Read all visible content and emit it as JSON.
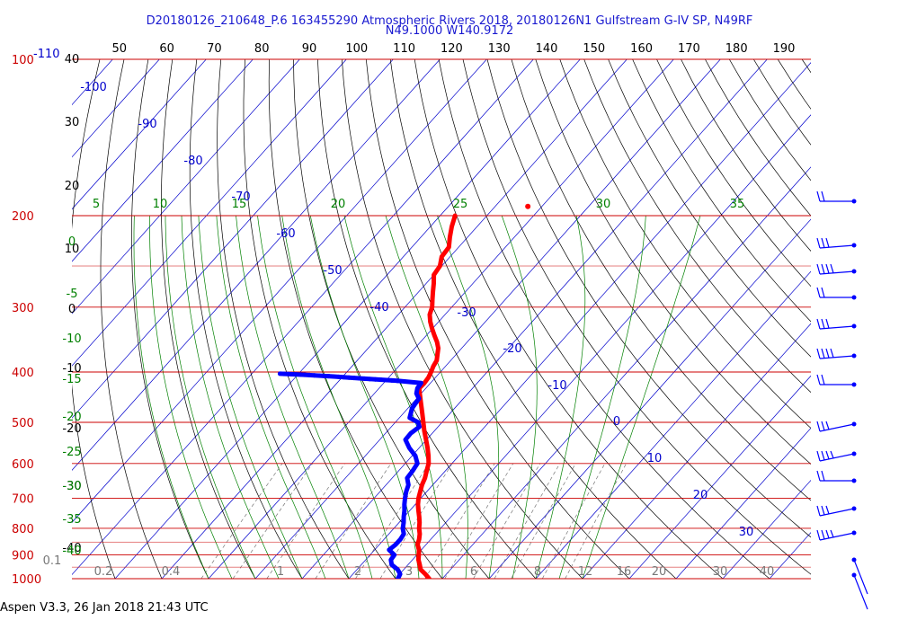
{
  "header": {
    "title": "D20180126_210648_P.6 163455290 Atmospheric Rivers 2018, 20180126N1 Gulfstream G-IV SP, N49RF",
    "subtitle": "N49.1000 W140.9172"
  },
  "footer": {
    "text": "Aspen V3.3, 26 Jan 2018  21:43 UTC"
  },
  "chart_data": {
    "type": "skew-t",
    "colors": {
      "temperature": "#ff0000",
      "dewpoint": "#0000ff",
      "isobars": "#cc0000",
      "isotherms": "#0000cc",
      "dry_adiabats": "#000000",
      "moist_adiabats": "#008000",
      "mixing_ratio": "#777777",
      "top_scale": "#000000"
    },
    "pressure_labels": [
      "100",
      "200",
      "300",
      "400",
      "500",
      "600",
      "700",
      "800",
      "900",
      "1000"
    ],
    "top_label_blue": "-110",
    "top_scale_labels": [
      "40",
      "50",
      "60",
      "70",
      "80",
      "90",
      "100",
      "110",
      "120",
      "130",
      "140",
      "150",
      "160",
      "170",
      "180",
      "190"
    ],
    "left_black_labels": [
      "30",
      "20",
      "10",
      "0",
      "-10",
      "-20",
      "-30",
      "-40"
    ],
    "isotherm_labels": [
      "-100",
      "-90",
      "-80",
      "-70",
      "-60",
      "-50",
      "-40",
      "-30",
      "-20",
      "-10",
      "0",
      "10",
      "20",
      "30"
    ],
    "moist_top_labels": [
      "5",
      "10",
      "15",
      "20",
      "25",
      "30",
      "35"
    ],
    "moist_left_labels": [
      "0",
      "-5",
      "-10",
      "-15",
      "-20",
      "-25",
      "-30",
      "-35",
      "-40"
    ],
    "mixing_ratio_labels": [
      "0.1",
      "0.2",
      "0.4",
      "1",
      "2",
      "3",
      "6",
      "8",
      "12",
      "16",
      "20",
      "30",
      "40"
    ],
    "temperature": [
      {
        "p": 1000,
        "t": 7.2
      },
      {
        "p": 980,
        "t": 5.5
      },
      {
        "p": 960,
        "t": 3.6
      },
      {
        "p": 940,
        "t": 2.5
      },
      {
        "p": 920,
        "t": 1.3
      },
      {
        "p": 900,
        "t": 0.4
      },
      {
        "p": 880,
        "t": -0.5
      },
      {
        "p": 860,
        "t": -1.8
      },
      {
        "p": 840,
        "t": -2.5
      },
      {
        "p": 820,
        "t": -3.4
      },
      {
        "p": 800,
        "t": -4.6
      },
      {
        "p": 780,
        "t": -5.6
      },
      {
        "p": 760,
        "t": -6.8
      },
      {
        "p": 740,
        "t": -8.1
      },
      {
        "p": 720,
        "t": -9.4
      },
      {
        "p": 700,
        "t": -10.5
      },
      {
        "p": 680,
        "t": -11.4
      },
      {
        "p": 660,
        "t": -12.3
      },
      {
        "p": 640,
        "t": -13.0
      },
      {
        "p": 620,
        "t": -14.0
      },
      {
        "p": 600,
        "t": -15.0
      },
      {
        "p": 580,
        "t": -16.5
      },
      {
        "p": 560,
        "t": -18.2
      },
      {
        "p": 540,
        "t": -20.1
      },
      {
        "p": 520,
        "t": -22.1
      },
      {
        "p": 500,
        "t": -24.0
      },
      {
        "p": 480,
        "t": -26.0
      },
      {
        "p": 460,
        "t": -28.1
      },
      {
        "p": 440,
        "t": -30.3
      },
      {
        "p": 430,
        "t": -31.4
      },
      {
        "p": 420,
        "t": -31.3
      },
      {
        "p": 410,
        "t": -31.5
      },
      {
        "p": 400,
        "t": -32.0
      },
      {
        "p": 390,
        "t": -32.6
      },
      {
        "p": 380,
        "t": -33.0
      },
      {
        "p": 370,
        "t": -34.0
      },
      {
        "p": 360,
        "t": -35.0
      },
      {
        "p": 350,
        "t": -36.5
      },
      {
        "p": 340,
        "t": -38.3
      },
      {
        "p": 330,
        "t": -40.1
      },
      {
        "p": 320,
        "t": -41.8
      },
      {
        "p": 310,
        "t": -43.3
      },
      {
        "p": 300,
        "t": -44.2
      },
      {
        "p": 290,
        "t": -45.6
      },
      {
        "p": 280,
        "t": -47.0
      },
      {
        "p": 270,
        "t": -48.4
      },
      {
        "p": 260,
        "t": -50.0
      },
      {
        "p": 250,
        "t": -50.4
      },
      {
        "p": 240,
        "t": -51.8
      },
      {
        "p": 230,
        "t": -52.1
      },
      {
        "p": 220,
        "t": -53.8
      },
      {
        "p": 210,
        "t": -55.4
      },
      {
        "p": 200,
        "t": -56.8
      }
    ],
    "dewpoint": [
      {
        "p": 1000,
        "t": 0.5
      },
      {
        "p": 980,
        "t": 0.1
      },
      {
        "p": 960,
        "t": -1.3
      },
      {
        "p": 940,
        "t": -3.5
      },
      {
        "p": 920,
        "t": -4.6
      },
      {
        "p": 900,
        "t": -4.8
      },
      {
        "p": 880,
        "t": -6.9
      },
      {
        "p": 860,
        "t": -6.5
      },
      {
        "p": 840,
        "t": -6.5
      },
      {
        "p": 820,
        "t": -6.8
      },
      {
        "p": 800,
        "t": -8.1
      },
      {
        "p": 780,
        "t": -9.0
      },
      {
        "p": 760,
        "t": -10.1
      },
      {
        "p": 740,
        "t": -11.1
      },
      {
        "p": 720,
        "t": -12.3
      },
      {
        "p": 700,
        "t": -13.4
      },
      {
        "p": 680,
        "t": -14.4
      },
      {
        "p": 660,
        "t": -15.2
      },
      {
        "p": 640,
        "t": -16.8
      },
      {
        "p": 620,
        "t": -17.0
      },
      {
        "p": 600,
        "t": -17.4
      },
      {
        "p": 580,
        "t": -19.3
      },
      {
        "p": 560,
        "t": -22.1
      },
      {
        "p": 540,
        "t": -24.5
      },
      {
        "p": 525,
        "t": -24.6
      },
      {
        "p": 510,
        "t": -24.0
      },
      {
        "p": 500,
        "t": -25.1
      },
      {
        "p": 490,
        "t": -27.8
      },
      {
        "p": 470,
        "t": -29.1
      },
      {
        "p": 460,
        "t": -29.3
      },
      {
        "p": 450,
        "t": -29.5
      },
      {
        "p": 440,
        "t": -31.0
      },
      {
        "p": 430,
        "t": -31.8
      },
      {
        "p": 420,
        "t": -32.0
      },
      {
        "p": 416,
        "t": -37.5
      },
      {
        "p": 412,
        "t": -45.0
      },
      {
        "p": 408,
        "t": -52.0
      },
      {
        "p": 405,
        "t": -58.5
      },
      {
        "p": 403,
        "t": -64.0
      }
    ],
    "isolated_point": {
      "p": 192,
      "t": -43.0
    },
    "ylim": [
      100,
      1000
    ],
    "wind_barb_count": 14
  }
}
